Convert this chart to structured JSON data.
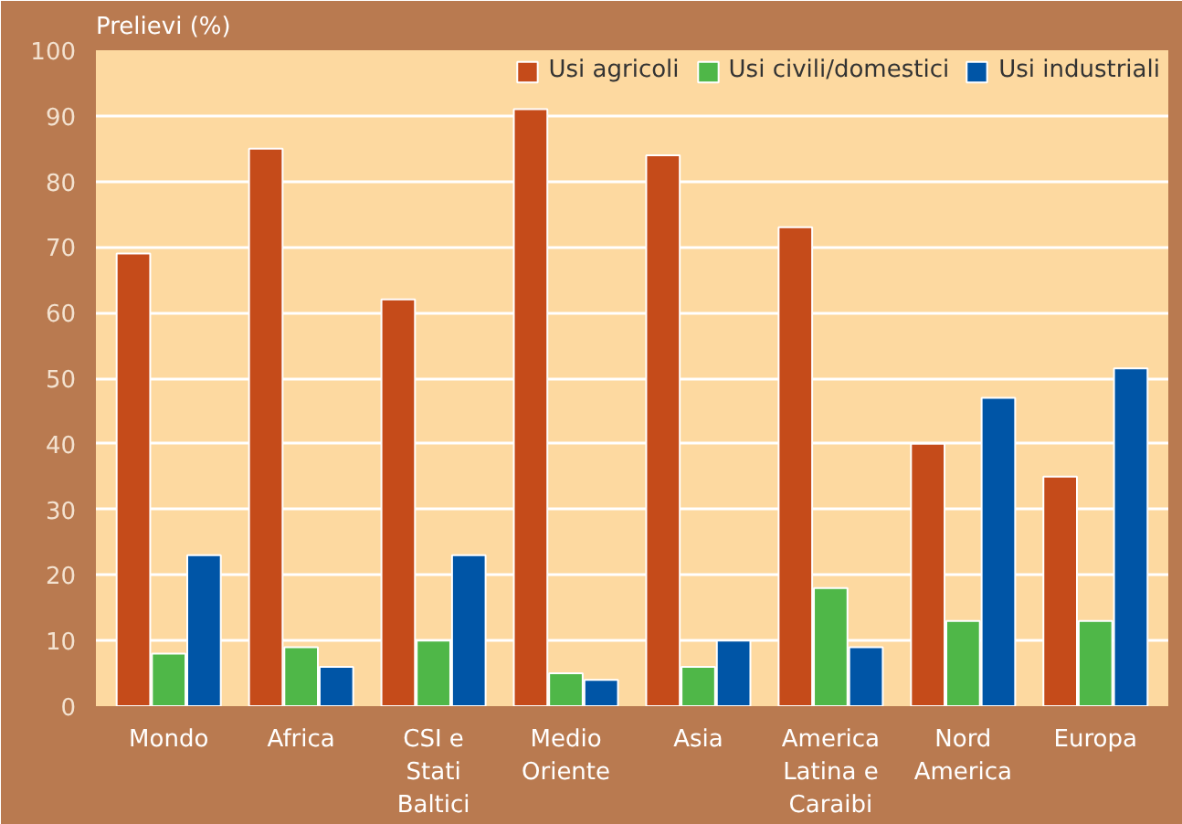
{
  "chart_data": {
    "type": "bar",
    "title": "Prelievi (%)",
    "categories": [
      "Mondo",
      "Africa",
      "CSI e\nStati\nBaltici",
      "Medio\nOriente",
      "Asia",
      "America\nLatina e\nCaraibi",
      "Nord\nAmerica",
      "Europa"
    ],
    "series": [
      {
        "name": "Usi agricoli",
        "color": "#c54b1a",
        "values": [
          69,
          85,
          62,
          91,
          84,
          73,
          40,
          35
        ]
      },
      {
        "name": "Usi civili/domestici",
        "color": "#4fb748",
        "values": [
          8,
          9,
          10,
          5,
          6,
          18,
          13,
          13
        ]
      },
      {
        "name": "Usi industriali",
        "color": "#0055a6",
        "values": [
          23,
          6,
          23,
          4,
          10,
          9,
          47,
          51.5
        ]
      }
    ],
    "ylim": [
      0,
      100
    ],
    "yticks": [
      0,
      10,
      20,
      30,
      40,
      50,
      60,
      70,
      80,
      90,
      100
    ],
    "grid": "y",
    "legend": "top right"
  }
}
